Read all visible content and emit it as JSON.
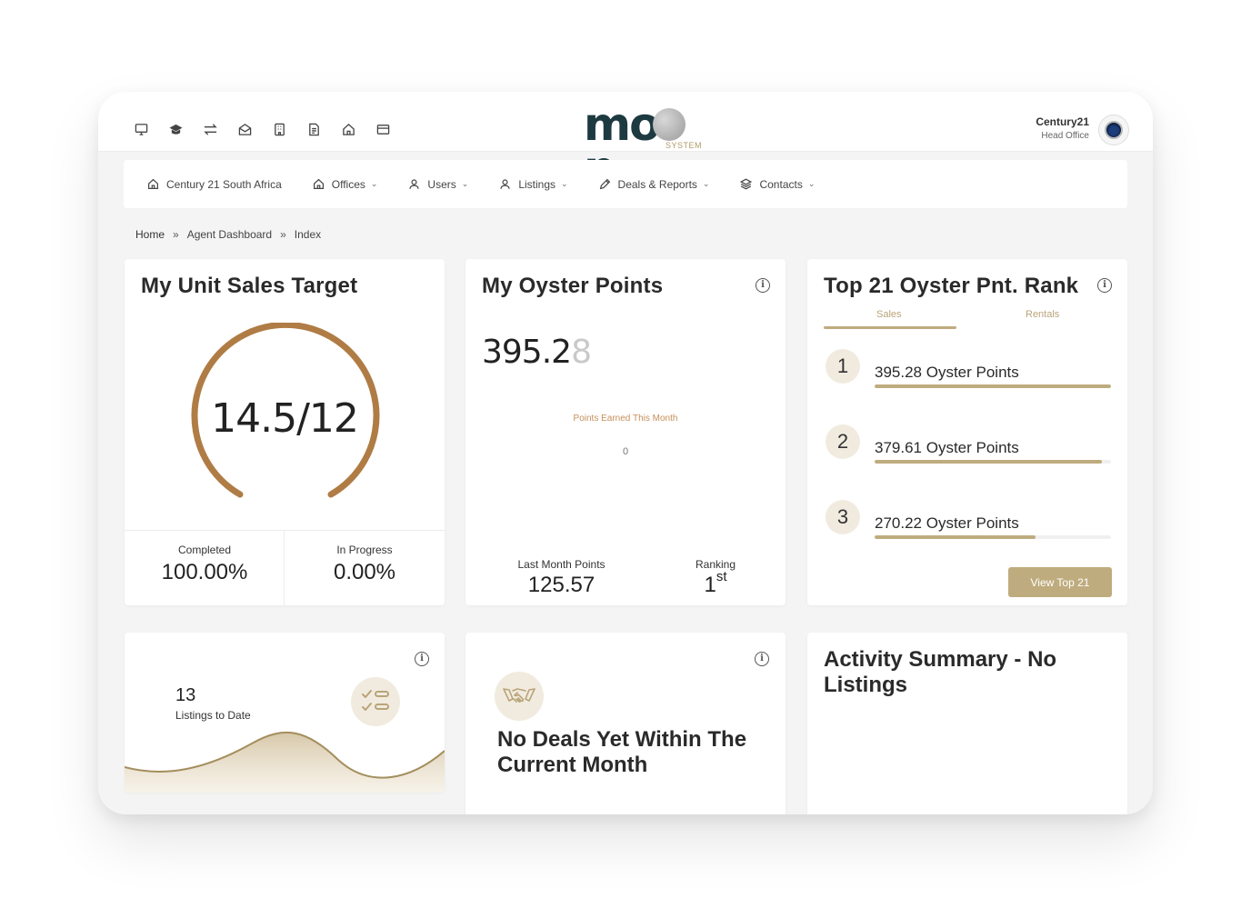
{
  "app": {
    "logo_text_left": "mo",
    "logo_text_right": "n",
    "logo_sub": "SYSTEM",
    "top_icons": [
      "monitor-icon",
      "graduation-cap-icon",
      "transfer-icon",
      "mail-open-icon",
      "building-icon",
      "document-icon",
      "home-icon",
      "card-icon"
    ]
  },
  "account": {
    "name": "Century21",
    "subtitle": "Head Office"
  },
  "nav": {
    "items": [
      {
        "label": "Century 21 South Africa",
        "icon": "home-icon",
        "has_dropdown": false
      },
      {
        "label": "Offices",
        "icon": "home-icon",
        "has_dropdown": true
      },
      {
        "label": "Users",
        "icon": "user-icon",
        "has_dropdown": true
      },
      {
        "label": "Listings",
        "icon": "user-icon",
        "has_dropdown": true
      },
      {
        "label": "Deals & Reports",
        "icon": "pencil-icon",
        "has_dropdown": true
      },
      {
        "label": "Contacts",
        "icon": "layers-icon",
        "has_dropdown": true
      }
    ],
    "chevron": "⌄"
  },
  "breadcrumb": {
    "items": [
      "Home",
      "Agent Dashboard",
      "Index"
    ],
    "separator": "»"
  },
  "unit_sales": {
    "title": "My Unit Sales Target",
    "value": "14.5/12",
    "completed_label": "Completed",
    "completed_value": "100.00%",
    "in_progress_label": "In Progress",
    "in_progress_value": "0.00%",
    "accent_color": "#b07c45"
  },
  "oyster_points": {
    "title": "My Oyster Points",
    "points_main": "395.2",
    "points_fade": "8",
    "chart_label": "Points Earned This Month",
    "chart_value": "0",
    "last_month_label": "Last Month Points",
    "last_month_value": "125.57",
    "ranking_label": "Ranking",
    "ranking_value": "1",
    "ranking_suffix": "st"
  },
  "top21": {
    "title": "Top 21 Oyster Pnt. Rank",
    "tabs": [
      "Sales",
      "Rentals"
    ],
    "active_tab": "Sales",
    "ranks": [
      {
        "rank": "1",
        "text": "395.28 Oyster Points",
        "fraction": 1.0
      },
      {
        "rank": "2",
        "text": "379.61 Oyster Points",
        "fraction": 0.96
      },
      {
        "rank": "3",
        "text": "270.22 Oyster Points",
        "fraction": 0.68
      }
    ],
    "button": "View Top 21",
    "accent_color": "#bfac7e"
  },
  "listings": {
    "count": "13",
    "label": "Listings to Date"
  },
  "deals": {
    "title": "No Deals Yet Within The Current Month"
  },
  "activity": {
    "title": "Activity Summary - No Listings"
  },
  "info_glyph": "i"
}
